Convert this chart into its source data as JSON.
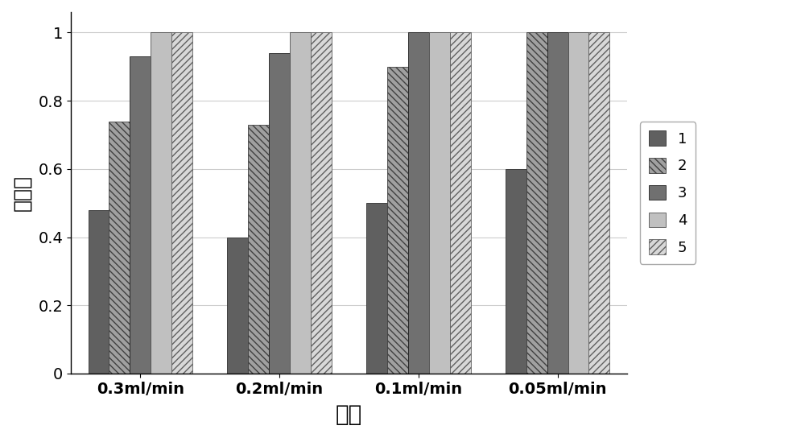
{
  "categories": [
    "0.3ml/min",
    "0.2ml/min",
    "0.1ml/min",
    "0.05ml/min"
  ],
  "series": {
    "1": [
      0.48,
      0.4,
      0.5,
      0.6
    ],
    "2": [
      0.74,
      0.73,
      0.9,
      1.0
    ],
    "3": [
      0.93,
      0.94,
      1.0,
      1.0
    ],
    "4": [
      1.0,
      1.0,
      1.0,
      1.0
    ],
    "5": [
      1.0,
      1.0,
      1.0,
      1.0
    ]
  },
  "series_order": [
    "1",
    "2",
    "3",
    "4",
    "5"
  ],
  "ylabel": "转化率",
  "xlabel": "速率",
  "ylim": [
    0,
    1.06
  ],
  "yticks": [
    0,
    0.2,
    0.4,
    0.6,
    0.8,
    1
  ],
  "ytick_labels": [
    "0",
    "0.2",
    "0.4",
    "0.6",
    "0.8",
    "1"
  ],
  "background_color": "#ffffff",
  "bar_width": 0.15,
  "axis_fontsize": 18,
  "tick_fontsize": 14,
  "legend_fontsize": 13,
  "series_styles": {
    "1": {
      "fc": "#606060",
      "hatch": "",
      "ec": "#303030"
    },
    "2": {
      "fc": "#a0a0a0",
      "hatch": "\\\\\\\\",
      "ec": "#404040"
    },
    "3": {
      "fc": "#707070",
      "hatch": "####",
      "ec": "#202020"
    },
    "4": {
      "fc": "#c0c0c0",
      "hatch": "~~~~",
      "ec": "#505050"
    },
    "5": {
      "fc": "#d8d8d8",
      "hatch": "////",
      "ec": "#606060"
    }
  }
}
